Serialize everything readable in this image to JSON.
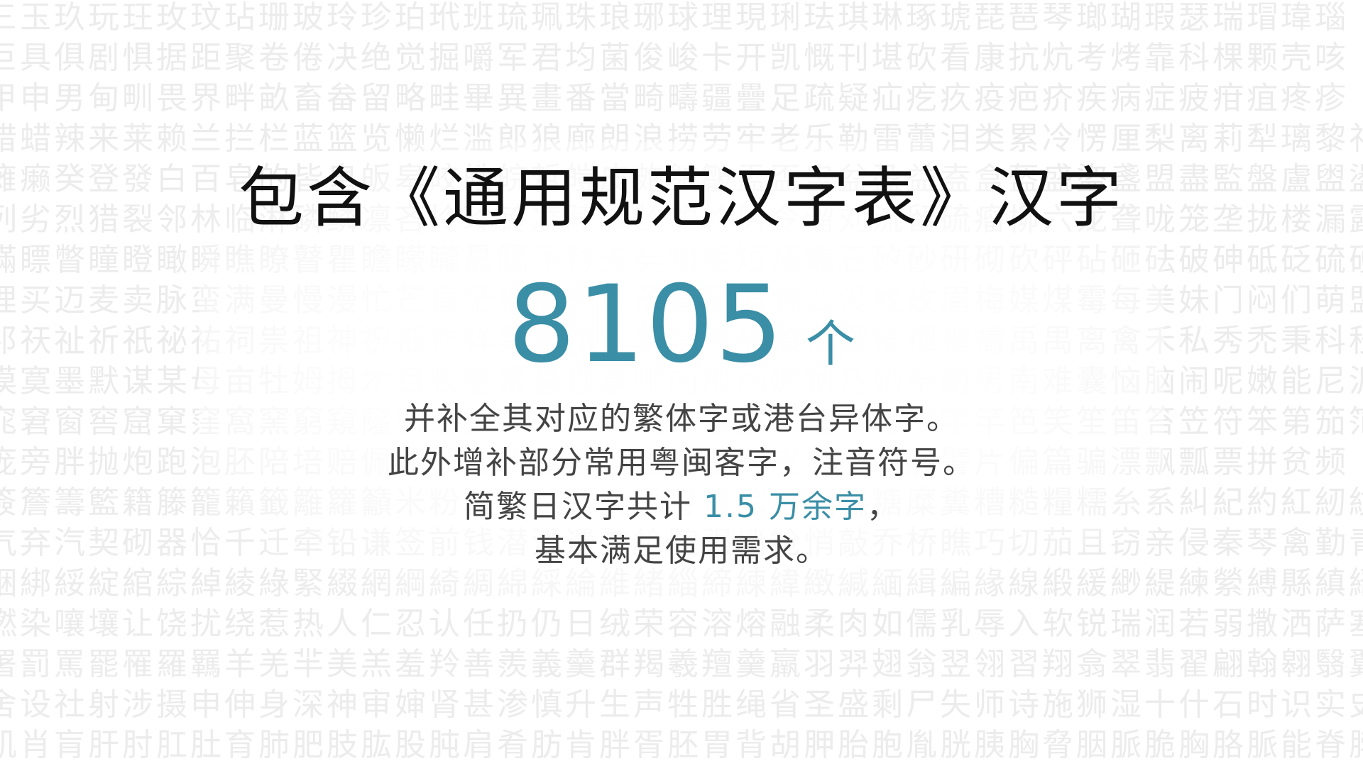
{
  "background": {
    "text_color": "#ececec",
    "lines": [
      "三玉玖玩玨玫玟玷珊玻玲珍珀玳班琉珮珠琅琊球理現琍珐琪琳琢琥琵琶琴瑯瑚瑕瑟瑞瑁瑋瑙",
      "巨具俱剧惧据距聚卷倦决绝觉掘嚼军君均菌俊峻卡开凯慨刊堪砍看康抗炕考烤靠科棵颗壳咳",
      "甲申男甸甽畏界畔畝畜畚留略畦畢異畫番當畸疇疆疊足疏疑疝疙疚疫疤疥疾病症疲疳疽疼疹",
      "腊蜡辣来莱赖兰拦栏蓝篮览懒烂滥郎狼廊朗浪捞劳牢老乐勒雷蕾泪类累冷愣厘梨离莉犁璃黎礼",
      "瘫癞癸登發白百皂的皆皇皈皋皎皓皖皙皚皮皰皴皺盂盃盅盆盈益盍盒盔盛盜盞盟盡監盤盧盥盪盦",
      "列劣烈猎裂邻林临淋磷鳞凛吝拎玲铃凌陵零龄领岭另令溜刘流留硫瘤柳六龙聋咙笼垄拢楼漏露卢芦炉",
      "瞞瞟瞥瞳瞪瞰瞬瞧瞭瞽瞿瞻矇矓矗矚矛矜矢矣知矩短矮矯石矽砂研砌砍砰砧砸砝破砷砥砭硫硬",
      "埋买迈麦卖脉蛮满曼慢漫忙芒盲茫猫毛矛茅茂冒贸帽貌么没枚玫眉梅媒煤霉每美妹门闷们萌盟",
      "祁祆祉祈祇祕祐祠祟祖神祝祗祚祥票祭祺祿禀禁禄禍禎福禦禧禪禮禱禹禺离禽禾私秀禿秉科秒秋秤秧",
      "漠寞墨默谋某母亩牡姆拇木目牧墓幕暮穆拿哪内那纳娜钠乃奶奈耐男南难囊恼脑闹呢嫩能尼泥你",
      "窕窘窗窖窟窠窪窩窯窮窺窿竄竅竇竈竊立站竟章竣童竭端競竹竺竽竿笆笑笙笛笞笠符笨第笳笵等策筆筐筒",
      "庞旁胖抛炮跑泡胚陪培赔佩配喷盆朋棚蓬鹏碰批披劈皮疲脾匹屁譬片偏篇骗漂飘瓢票拼贫频",
      "簽簷籌籃籍籐籠籟籤籬籮籲米粉粒粗粘粟粥粱粵粹粽精糊糕糖糜糞糟糙糧糯糸系糾紀約紅紉紋",
      "气弃汽契砌器恰千迁牵铅谦签前钱潜浅遣欠枪腔强墙抢悄敲乔桥瞧巧切茄且窃亲侵秦琴禽勤青",
      "綑綁綏綻綰綜綽綾綠緊綴網綱綺綢綿綵綸維緒緇締練緯緻緘緬緝編緣線緞緩緲緹練縈縛縣縝縉",
      "燃染嚷壤让饶扰绕惹热人仁忍认任扔仍日绒荣容溶熔融柔肉如儒乳辱入软锐瑞润若弱撒洒萨塞",
      "署罰罵罷罹羅羈羊羌羋美羔羞羚善羨義羹群羯羲羶羹羸羽羿翅翁翌翎習翔翕翠翡翟翩翰翱翳翼翻",
      "舍设社射涉摄申伸身深神审婶肾甚渗慎升生声牲胜绳省圣盛剩尸失师诗施狮湿十什石时识实史",
      "肌肖肓肝肘肛肚育肺肥肢肱股肫肩肴肪肯胖胥胚胃背胡胛胎胞胤胱胰胸脅胭脈脆胸胳脈能脊脖"
    ]
  },
  "headline": "包含《通用规范汉字表》汉字",
  "count": {
    "number": "8105",
    "unit": "个"
  },
  "description": {
    "line1": "并补全其对应的繁体字或港台异体字。",
    "line2": "此外增补部分常用粤闽客字，注音符号。",
    "line3_prefix": "简繁日汉字共计 ",
    "line3_highlight": "1.5 万余字",
    "line3_suffix": "，",
    "line4": "基本满足使用需求。"
  },
  "colors": {
    "accent": "#3a8ea6",
    "headline": "#111111",
    "body": "#444444",
    "background": "#ffffff"
  }
}
